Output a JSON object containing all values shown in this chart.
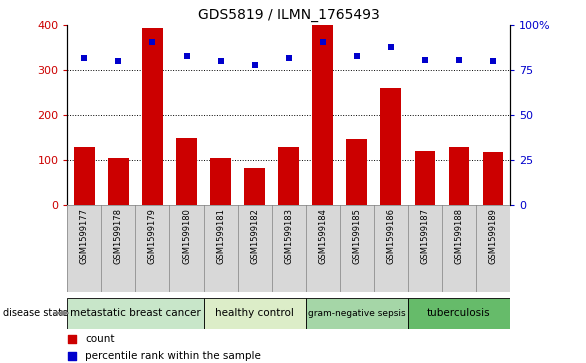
{
  "title": "GDS5819 / ILMN_1765493",
  "samples": [
    "GSM1599177",
    "GSM1599178",
    "GSM1599179",
    "GSM1599180",
    "GSM1599181",
    "GSM1599182",
    "GSM1599183",
    "GSM1599184",
    "GSM1599185",
    "GSM1599186",
    "GSM1599187",
    "GSM1599188",
    "GSM1599189"
  ],
  "counts": [
    130,
    105,
    395,
    150,
    105,
    82,
    130,
    400,
    148,
    260,
    120,
    130,
    118
  ],
  "percentile_ranks": [
    82,
    80,
    91,
    83,
    80,
    78,
    82,
    91,
    83,
    88,
    81,
    81,
    80
  ],
  "disease_groups": [
    {
      "label": "metastatic breast cancer",
      "start": 0,
      "end": 4,
      "color": "#c8e6c9"
    },
    {
      "label": "healthy control",
      "start": 4,
      "end": 7,
      "color": "#dcedc8"
    },
    {
      "label": "gram-negative sepsis",
      "start": 7,
      "end": 10,
      "color": "#a5d6a7"
    },
    {
      "label": "tuberculosis",
      "start": 10,
      "end": 13,
      "color": "#66bb6a"
    }
  ],
  "bar_color": "#cc0000",
  "dot_color": "#0000cc",
  "ylim_left": [
    0,
    400
  ],
  "ylim_right": [
    0,
    100
  ],
  "yticks_left": [
    0,
    100,
    200,
    300,
    400
  ],
  "yticks_right": [
    0,
    25,
    50,
    75,
    100
  ],
  "yticklabels_right": [
    "0",
    "25",
    "50",
    "75",
    "100%"
  ],
  "bg_color": "#d8d8d8",
  "plot_bg": "#ffffff",
  "grid_color": "#000000"
}
